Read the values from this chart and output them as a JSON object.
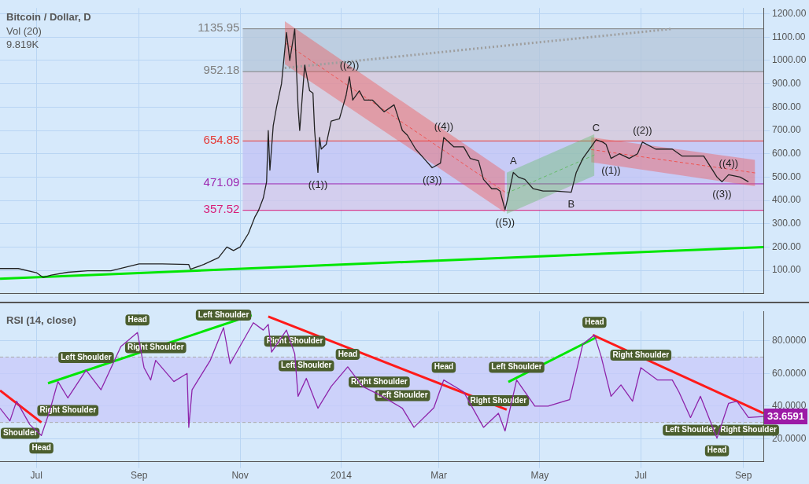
{
  "chart_data": [
    {
      "type": "line",
      "title": "Bitcoin / Dollar, D",
      "marker": "none",
      "grid": true,
      "legend": false,
      "tick_labels": "y",
      "xlim": [
        "2013-06-09",
        "2014-09-13"
      ],
      "ylim": [
        0,
        1225
      ],
      "xticks": [
        {
          "value": "2013-07-01",
          "label": null
        },
        {
          "value": "2013-09-01",
          "label": null
        },
        {
          "value": "2013-11-01",
          "label": null
        },
        {
          "value": "2014-01-01",
          "label": null
        },
        {
          "value": "2014-03-01",
          "label": null
        },
        {
          "value": "2014-05-01",
          "label": null
        },
        {
          "value": "2014-07-01",
          "label": null
        },
        {
          "value": "2014-09-01",
          "label": null
        }
      ],
      "yticks": [
        {
          "value": 100,
          "label": "100.00"
        },
        {
          "value": 200,
          "label": "200.00"
        },
        {
          "value": 300,
          "label": "300.00"
        },
        {
          "value": 400,
          "label": "400.00"
        },
        {
          "value": 500,
          "label": "500.00"
        },
        {
          "value": 600,
          "label": "600.00"
        },
        {
          "value": 700,
          "label": "700.00"
        },
        {
          "value": 800,
          "label": "800.00"
        },
        {
          "value": 900,
          "label": "900.00"
        },
        {
          "value": 1000,
          "label": "1000.00"
        },
        {
          "value": 1100,
          "label": "1100.00"
        },
        {
          "value": 1200,
          "label": "1200.00"
        }
      ],
      "bands": [
        {
          "axis": "y",
          "from": 952.18,
          "to": 1135.95,
          "color": "#b4c4d8"
        },
        {
          "axis": "y",
          "from": 654.85,
          "to": 952.18,
          "color": "#d6c4d8"
        },
        {
          "axis": "y",
          "from": 471.09,
          "to": 654.85,
          "color": "#c2c0f4"
        },
        {
          "axis": "y",
          "from": 357.52,
          "to": 471.09,
          "color": "#d2c4ea"
        }
      ],
      "ref_lines": [
        {
          "axis": "y",
          "value": 1135.95,
          "label": "1135.95",
          "color": "#808080"
        },
        {
          "axis": "y",
          "value": 952.18,
          "label": "952.18",
          "color": "#808080"
        },
        {
          "axis": "y",
          "value": 654.85,
          "label": "654.85",
          "color": "#e53935"
        },
        {
          "axis": "y",
          "value": 471.09,
          "label": "471.09",
          "color": "#9c27b0"
        },
        {
          "axis": "y",
          "value": 357.52,
          "label": "357.52",
          "color": "#d81b78"
        }
      ],
      "annotations": [
        "Vol (20)",
        "9.819K",
        {
          "text": "((1))",
          "x": "2013-12-18",
          "y": 520
        },
        {
          "text": "((2))",
          "x": "2014-01-06",
          "y": 930
        },
        {
          "text": "((3))",
          "x": "2014-02-25",
          "y": 540
        },
        {
          "text": "((4))",
          "x": "2014-03-04",
          "y": 670
        },
        {
          "text": "((5))",
          "x": "2014-04-10",
          "y": 360
        },
        {
          "text": "A",
          "x": "2014-04-15",
          "y": 520
        },
        {
          "text": "B",
          "x": "2014-05-20",
          "y": 435
        },
        {
          "text": "C",
          "x": "2014-06-04",
          "y": 660
        },
        {
          "text": "((1))",
          "x": "2014-06-13",
          "y": 580
        },
        {
          "text": "((2))",
          "x": "2014-07-02",
          "y": 650
        },
        {
          "text": "((3))",
          "x": "2014-08-19",
          "y": 480
        },
        {
          "text": "((4))",
          "x": "2014-08-23",
          "y": 510
        }
      ],
      "series": [
        {
          "color": "#ef5350",
          "line_style": "dashed",
          "x": [
            "2013-11-28",
            "2014-04-10"
          ],
          "values": [
            1076,
            436
          ],
          "lower": [
            984,
            348
          ],
          "upper": [
            1168,
            523
          ]
        },
        {
          "color": "#66bb6a",
          "line_style": "dashed",
          "x": [
            "2014-04-11",
            "2014-06-03"
          ],
          "values": [
            431,
            595
          ],
          "lower": [
            342,
            506
          ],
          "upper": [
            519,
            684
          ]
        },
        {
          "color": "#ef5350",
          "line_style": "dashed",
          "x": [
            "2014-06-01",
            "2014-09-08"
          ],
          "values": [
            618,
            518
          ],
          "lower": [
            564,
            461
          ],
          "upper": [
            671,
            574
          ]
        },
        {
          "color": "#9e9e9e",
          "line_style": "dotted",
          "x": [
            "2013-11-28",
            "2014-07-19"
          ],
          "values": [
            968,
            1135
          ]
        },
        {
          "color": "#00e600",
          "x": [
            "2013-06-09",
            "2014-09-13"
          ],
          "values": [
            64,
            200
          ]
        },
        {
          "color": "#222222",
          "x": [
            "2013-06-09",
            "2013-06-20",
            "2013-07-01",
            "2013-07-05",
            "2013-07-10",
            "2013-07-20",
            "2013-08-01",
            "2013-08-15",
            "2013-09-01",
            "2013-09-15",
            "2013-10-01",
            "2013-10-02",
            "2013-10-10",
            "2013-10-19",
            "2013-10-24",
            "2013-10-28",
            "2013-11-01",
            "2013-11-06",
            "2013-11-10",
            "2013-11-12",
            "2013-11-15",
            "2013-11-17",
            "2013-11-18",
            "2013-11-19",
            "2013-11-21",
            "2013-11-23",
            "2013-11-26",
            "2013-11-29",
            "2013-12-01",
            "2013-12-04",
            "2013-12-06",
            "2013-12-07",
            "2013-12-10",
            "2013-12-13",
            "2013-12-15",
            "2013-12-16",
            "2013-12-18",
            "2013-12-19",
            "2013-12-20",
            "2013-12-23",
            "2013-12-26",
            "2013-12-31",
            "2014-01-04",
            "2014-01-06",
            "2014-01-08",
            "2014-01-12",
            "2014-01-15",
            "2014-01-20",
            "2014-01-27",
            "2014-02-02",
            "2014-02-07",
            "2014-02-10",
            "2014-02-15",
            "2014-02-20",
            "2014-02-25",
            "2014-03-02",
            "2014-03-04",
            "2014-03-10",
            "2014-03-16",
            "2014-03-20",
            "2014-03-25",
            "2014-03-28",
            "2014-04-02",
            "2014-04-05",
            "2014-04-07",
            "2014-04-10",
            "2014-04-12",
            "2014-04-15",
            "2014-04-18",
            "2014-04-22",
            "2014-04-27",
            "2014-05-03",
            "2014-05-10",
            "2014-05-20",
            "2014-05-23",
            "2014-05-27",
            "2014-06-01",
            "2014-06-04",
            "2014-06-08",
            "2014-06-10",
            "2014-06-13",
            "2014-06-18",
            "2014-06-24",
            "2014-06-29",
            "2014-07-02",
            "2014-07-10",
            "2014-07-20",
            "2014-07-26",
            "2014-07-31",
            "2014-08-08",
            "2014-08-16",
            "2014-08-19",
            "2014-08-23",
            "2014-08-30",
            "2014-09-04"
          ],
          "values": [
            108,
            108,
            90,
            70,
            80,
            92,
            98,
            98,
            128,
            128,
            125,
            105,
            125,
            155,
            200,
            185,
            200,
            258,
            330,
            355,
            410,
            480,
            700,
            530,
            720,
            800,
            900,
            1120,
            1000,
            1135,
            800,
            700,
            980,
            870,
            860,
            700,
            520,
            670,
            620,
            640,
            740,
            750,
            850,
            930,
            830,
            870,
            830,
            830,
            780,
            810,
            700,
            680,
            620,
            580,
            540,
            560,
            670,
            630,
            630,
            580,
            570,
            490,
            450,
            450,
            440,
            360,
            420,
            520,
            500,
            490,
            450,
            440,
            440,
            435,
            520,
            580,
            630,
            660,
            650,
            640,
            580,
            600,
            580,
            600,
            650,
            620,
            620,
            590,
            590,
            590,
            500,
            480,
            510,
            500,
            480
          ]
        }
      ]
    },
    {
      "type": "line",
      "title": "RSI (14, close)",
      "marker": "none",
      "grid": true,
      "legend": false,
      "xlim": [
        "2013-06-09",
        "2014-09-13"
      ],
      "ylim": [
        6,
        98
      ],
      "xticks": [
        {
          "value": "2013-07-01",
          "label": "Jul"
        },
        {
          "value": "2013-09-01",
          "label": "Sep"
        },
        {
          "value": "2013-11-01",
          "label": "Nov"
        },
        {
          "value": "2014-01-01",
          "label": "2014"
        },
        {
          "value": "2014-03-01",
          "label": "Mar"
        },
        {
          "value": "2014-05-01",
          "label": "May"
        },
        {
          "value": "2014-07-01",
          "label": "Jul"
        },
        {
          "value": "2014-09-01",
          "label": "Sep"
        }
      ],
      "yticks": [
        {
          "value": 20,
          "label": "20.0000"
        },
        {
          "value": 40,
          "label": "40.0000"
        },
        {
          "value": 60,
          "label": "60.0000"
        },
        {
          "value": 80,
          "label": "80.0000"
        }
      ],
      "bands": [
        {
          "axis": "y",
          "from": 30,
          "to": 70,
          "color": "#c8c8fa"
        }
      ],
      "ref_lines": [
        {
          "axis": "y",
          "value": 70,
          "color": "#aaaaaa",
          "line_style": "dashed"
        },
        {
          "axis": "y",
          "value": 30,
          "color": "#aaaaaa",
          "line_style": "dashed"
        }
      ],
      "annotations": [
        {
          "text": "33.6591",
          "x": "2014-09-13",
          "y": 33.6591
        },
        {
          "text": "Shoulder",
          "x": "2013-06-15",
          "y": 31
        },
        {
          "text": "Head",
          "x": "2013-07-04",
          "y": 22
        },
        {
          "text": "Right Shoulder",
          "x": "2013-07-20",
          "y": 45
        },
        {
          "text": "Left Shoulder",
          "x": "2013-07-31",
          "y": 62
        },
        {
          "text": "Head",
          "x": "2013-08-31",
          "y": 85
        },
        {
          "text": "Right Shoulder",
          "x": "2013-09-11",
          "y": 68
        },
        {
          "text": "Left Shoulder",
          "x": "2013-10-22",
          "y": 88
        },
        {
          "text": "Right Shoulder",
          "x": "2013-12-04",
          "y": 72
        },
        {
          "text": "Left Shoulder",
          "x": "2013-12-11",
          "y": 57
        },
        {
          "text": "Head",
          "x": "2014-01-05",
          "y": 64
        },
        {
          "text": "Right Shoulder",
          "x": "2014-01-24",
          "y": 47
        },
        {
          "text": "Left Shoulder",
          "x": "2014-02-07",
          "y": 38.7
        },
        {
          "text": "Head",
          "x": "2014-03-04",
          "y": 56
        },
        {
          "text": "Right Shoulder",
          "x": "2014-04-06",
          "y": 35.6
        },
        {
          "text": "Left Shoulder",
          "x": "2014-04-17",
          "y": 56
        },
        {
          "text": "Head",
          "x": "2014-06-03",
          "y": 83.5
        },
        {
          "text": "Right Shoulder",
          "x": "2014-07-01",
          "y": 63.5
        },
        {
          "text": "Left Shoulder",
          "x": "2014-07-31",
          "y": 33
        },
        {
          "text": "Head",
          "x": "2014-08-16",
          "y": 20.4
        },
        {
          "text": "Right Shoulder",
          "x": "2014-09-04",
          "y": 33
        }
      ],
      "series": [
        {
          "color": "#8e24aa",
          "x": [
            "2013-06-09",
            "2013-06-15",
            "2013-06-19",
            "2013-06-27",
            "2013-07-04",
            "2013-07-09",
            "2013-07-14",
            "2013-07-20",
            "2013-07-31",
            "2013-08-09",
            "2013-08-21",
            "2013-08-31",
            "2013-09-04",
            "2013-09-08",
            "2013-09-11",
            "2013-09-22",
            "2013-09-30",
            "2013-10-01",
            "2013-10-03",
            "2013-10-14",
            "2013-10-22",
            "2013-10-26",
            "2013-11-09",
            "2013-11-15",
            "2013-11-18",
            "2013-11-20",
            "2013-11-29",
            "2013-12-04",
            "2013-12-06",
            "2013-12-11",
            "2013-12-18",
            "2013-12-26",
            "2014-01-05",
            "2014-01-14",
            "2014-01-24",
            "2014-02-07",
            "2014-02-14",
            "2014-02-26",
            "2014-03-04",
            "2014-03-16",
            "2014-03-28",
            "2014-04-06",
            "2014-04-10",
            "2014-04-17",
            "2014-04-28",
            "2014-05-06",
            "2014-05-19",
            "2014-05-27",
            "2014-06-03",
            "2014-06-07",
            "2014-06-13",
            "2014-06-19",
            "2014-06-26",
            "2014-07-01",
            "2014-07-11",
            "2014-07-20",
            "2014-07-24",
            "2014-07-31",
            "2014-08-06",
            "2014-08-16",
            "2014-08-23",
            "2014-08-28",
            "2014-09-04",
            "2014-09-13"
          ],
          "values": [
            38.7,
            31,
            43,
            28.7,
            22,
            37,
            55,
            45,
            62,
            50,
            76.5,
            85,
            63.5,
            56,
            68,
            55,
            60,
            27,
            50,
            68,
            88,
            66,
            91,
            86.5,
            90,
            73,
            86.5,
            72,
            46,
            57,
            38.7,
            52,
            64,
            52,
            47,
            38.7,
            27,
            39,
            56,
            48.7,
            27,
            35.6,
            24.8,
            56,
            40,
            40,
            44,
            78,
            83.5,
            70.5,
            46,
            53,
            43,
            63.5,
            56,
            56,
            48.7,
            33,
            46,
            20.4,
            41.7,
            43,
            33,
            33.6591
          ]
        },
        {
          "color": "#ff1a1a",
          "x": [
            "2013-06-09",
            "2013-07-04"
          ],
          "values": [
            49.6,
            30
          ]
        },
        {
          "color": "#00e600",
          "x": [
            "2013-07-08",
            "2013-11-08"
          ],
          "values": [
            54,
            95.6
          ]
        },
        {
          "color": "#ff1a1a",
          "x": [
            "2013-11-18",
            "2014-04-11"
          ],
          "values": [
            94.8,
            37.8
          ]
        },
        {
          "color": "#00e600",
          "x": [
            "2014-04-12",
            "2014-06-04"
          ],
          "values": [
            54.8,
            82
          ]
        },
        {
          "color": "#ff1a1a",
          "x": [
            "2014-06-02",
            "2014-09-13"
          ],
          "values": [
            83.5,
            35.7
          ]
        }
      ]
    }
  ]
}
